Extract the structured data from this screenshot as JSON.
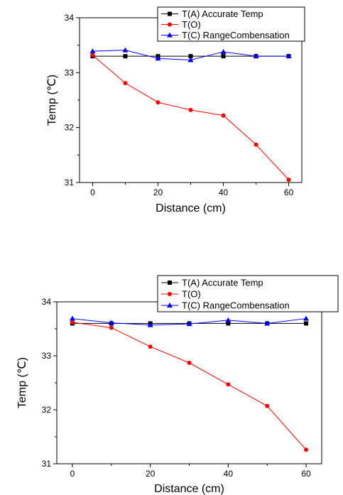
{
  "chart_data": [
    {
      "type": "line",
      "xlabel": "Distance (cm)",
      "ylabel": "Temp (℃)",
      "xlim": [
        -4,
        64
      ],
      "ylim": [
        31,
        34
      ],
      "xticks": [
        0,
        20,
        40,
        60
      ],
      "xtick_labels": [
        "0",
        "20",
        "40",
        "60"
      ],
      "yticks": [
        31,
        32,
        33,
        34
      ],
      "ytick_labels": [
        "31",
        "32",
        "33",
        "34"
      ],
      "grid": false,
      "legend_position": "top-right",
      "series": [
        {
          "name": "T(A) Accurate Temp",
          "color": "#000000",
          "marker": "square",
          "x": [
            0,
            10,
            20,
            30,
            40,
            50,
            60
          ],
          "y": [
            33.3,
            33.3,
            33.3,
            33.3,
            33.3,
            33.3,
            33.3
          ]
        },
        {
          "name": "T(O)",
          "color": "#ff0000",
          "marker": "circle",
          "x": [
            0,
            10,
            20,
            30,
            40,
            50,
            60
          ],
          "y": [
            33.32,
            32.81,
            32.46,
            32.32,
            32.22,
            31.69,
            31.05
          ]
        },
        {
          "name": "T(C) RangeCombensation",
          "color": "#0000ff",
          "marker": "triangle",
          "x": [
            0,
            10,
            20,
            30,
            40,
            50,
            60
          ],
          "y": [
            33.39,
            33.41,
            33.26,
            33.23,
            33.38,
            33.3,
            33.3
          ]
        }
      ]
    },
    {
      "type": "line",
      "xlabel": "Distance (cm)",
      "ylabel": "Temp (℃)",
      "xlim": [
        -4,
        64
      ],
      "ylim": [
        31,
        34
      ],
      "xticks": [
        0,
        20,
        40,
        60
      ],
      "xtick_labels": [
        "0",
        "20",
        "40",
        "60"
      ],
      "yticks": [
        31,
        32,
        33,
        34
      ],
      "ytick_labels": [
        "31",
        "32",
        "33",
        "34"
      ],
      "grid": false,
      "legend_position": "top-right",
      "series": [
        {
          "name": "T(A) Accurate Temp",
          "color": "#000000",
          "marker": "square",
          "x": [
            0,
            10,
            20,
            30,
            40,
            50,
            60
          ],
          "y": [
            33.6,
            33.6,
            33.6,
            33.6,
            33.6,
            33.6,
            33.6
          ]
        },
        {
          "name": "T(O)",
          "color": "#ff0000",
          "marker": "circle",
          "x": [
            0,
            10,
            20,
            30,
            40,
            50,
            60
          ],
          "y": [
            33.62,
            33.52,
            33.17,
            32.87,
            32.47,
            32.07,
            31.26
          ]
        },
        {
          "name": "T(C) RangeCombensation",
          "color": "#0000ff",
          "marker": "triangle",
          "x": [
            0,
            10,
            20,
            30,
            40,
            50,
            60
          ],
          "y": [
            33.69,
            33.61,
            33.57,
            33.59,
            33.66,
            33.6,
            33.69
          ]
        }
      ]
    }
  ]
}
